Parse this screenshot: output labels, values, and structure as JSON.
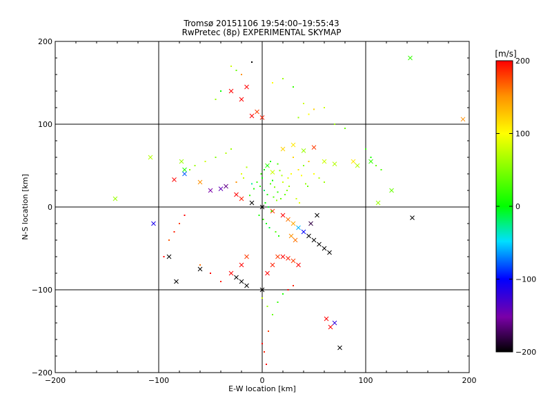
{
  "chart_data": {
    "type": "scatter",
    "title": "Tromsø 20151106 19:54:00–19:55:43",
    "subtitle": "RwPretec (8p) EXPERIMENTAL SKYMAP",
    "xlabel": "E-W location [km]",
    "ylabel": "N-S location [km]",
    "xlim": [
      -200,
      200
    ],
    "ylim": [
      -200,
      200
    ],
    "xticks": [
      -200,
      -100,
      0,
      100,
      200
    ],
    "yticks": [
      -200,
      -100,
      0,
      100,
      200
    ],
    "x_tick_labels": [
      "−200",
      "−100",
      "0",
      "100",
      "200"
    ],
    "y_tick_labels": [
      "−200",
      "−100",
      "0",
      "100",
      "200"
    ],
    "grid_lines": [
      -100,
      0,
      100
    ],
    "colorbar": {
      "label": "[m/s]",
      "range": [
        -200,
        200
      ],
      "ticks": [
        200,
        100,
        0,
        -100,
        -200
      ],
      "tick_labels": [
        "200",
        "100",
        "0",
        "−100",
        "−200"
      ],
      "colormap": "rainbow (black-purple-blue-cyan-green-yellow-red)"
    },
    "series": [
      {
        "marker": "x",
        "x": [
          -142,
          143,
          194,
          -108,
          -78,
          -75,
          -30,
          -20,
          -15,
          -10,
          -5,
          0,
          5,
          10,
          20,
          30,
          40,
          50,
          60,
          70,
          88,
          92,
          105,
          112,
          125,
          145,
          -85,
          -75,
          -60,
          -50,
          -40,
          -35,
          -25,
          -20,
          -10,
          0,
          10,
          20,
          25,
          30,
          35,
          40,
          45,
          50,
          55,
          60,
          65,
          20,
          25,
          30,
          35,
          28,
          32,
          -30,
          -25,
          -20,
          -15,
          0,
          5,
          10,
          15,
          -20,
          -15,
          70,
          66,
          62,
          75,
          -60,
          -90,
          -105,
          -83,
          53,
          47
        ],
        "y": [
          10,
          180,
          106,
          60,
          55,
          45,
          140,
          130,
          145,
          110,
          115,
          108,
          50,
          42,
          70,
          75,
          68,
          72,
          55,
          52,
          55,
          50,
          55,
          5,
          20,
          -13,
          33,
          40,
          30,
          20,
          22,
          25,
          15,
          10,
          5,
          0,
          -5,
          -10,
          -15,
          -20,
          -25,
          -30,
          -35,
          -40,
          -45,
          -50,
          -55,
          -60,
          -62,
          -65,
          -70,
          -35,
          -40,
          -80,
          -85,
          -90,
          -95,
          -100,
          -80,
          -70,
          -60,
          -70,
          -60,
          -140,
          -145,
          -135,
          -170,
          -75,
          -60,
          -20,
          -90,
          -10,
          -20
        ],
        "values": [
          60,
          20,
          150,
          70,
          60,
          10,
          200,
          200,
          200,
          200,
          180,
          190,
          30,
          80,
          120,
          110,
          60,
          180,
          80,
          70,
          110,
          70,
          20,
          60,
          40,
          -200,
          200,
          -80,
          150,
          -150,
          -140,
          -160,
          200,
          190,
          -200,
          -200,
          180,
          200,
          160,
          140,
          -60,
          -100,
          -200,
          -200,
          -200,
          -200,
          -200,
          200,
          190,
          180,
          200,
          150,
          160,
          200,
          -200,
          -200,
          -200,
          -200,
          200,
          190,
          180,
          200,
          180,
          -120,
          200,
          200,
          -200,
          -200,
          -200,
          -110,
          -200,
          -200,
          -180
        ]
      },
      {
        "marker": "dot",
        "x": [
          -5,
          -2,
          0,
          2,
          5,
          8,
          10,
          12,
          15,
          18,
          -8,
          -10,
          -12,
          3,
          6,
          9,
          11,
          14,
          20,
          25,
          28,
          35,
          38,
          40,
          42,
          44,
          -15,
          -18,
          -20,
          -25,
          30,
          45,
          50,
          55,
          60,
          -3,
          1,
          4,
          7,
          13,
          16,
          22,
          24,
          26,
          33,
          36,
          -1,
          2,
          5,
          8,
          15,
          17,
          19,
          -30,
          -35,
          -45,
          -55,
          -65,
          -70,
          -75,
          -80,
          -85,
          -90,
          -95,
          -60,
          -50,
          -40,
          60,
          70,
          80,
          100,
          105,
          110,
          115,
          0,
          5,
          10,
          15,
          20,
          25,
          30,
          -40,
          -45,
          0,
          2,
          4,
          6,
          -20,
          -25,
          -30,
          -10,
          10,
          20,
          30,
          40,
          50,
          45,
          35
        ],
        "y": [
          30,
          25,
          35,
          20,
          15,
          28,
          32,
          24,
          18,
          10,
          22,
          28,
          14,
          5,
          0,
          -5,
          12,
          8,
          30,
          35,
          40,
          45,
          38,
          50,
          28,
          25,
          48,
          35,
          40,
          30,
          60,
          55,
          40,
          35,
          30,
          -10,
          -15,
          -20,
          -25,
          -30,
          -35,
          15,
          20,
          25,
          10,
          5,
          40,
          45,
          50,
          55,
          52,
          44,
          38,
          70,
          65,
          60,
          55,
          50,
          45,
          -10,
          -20,
          -30,
          -40,
          -60,
          -70,
          -80,
          -90,
          120,
          100,
          95,
          70,
          60,
          50,
          45,
          -110,
          -120,
          -130,
          -115,
          -105,
          -100,
          -95,
          140,
          130,
          -165,
          -175,
          -190,
          -150,
          160,
          165,
          170,
          175,
          150,
          155,
          145,
          125,
          118,
          112,
          108
        ],
        "values": [
          20,
          10,
          0,
          -20,
          10,
          30,
          0,
          50,
          20,
          40,
          10,
          -30,
          20,
          0,
          -10,
          10,
          30,
          60,
          80,
          90,
          100,
          110,
          100,
          50,
          60,
          40,
          70,
          80,
          90,
          150,
          120,
          130,
          100,
          70,
          60,
          10,
          20,
          0,
          -10,
          30,
          10,
          40,
          50,
          60,
          80,
          90,
          20,
          0,
          -10,
          10,
          30,
          50,
          70,
          60,
          70,
          50,
          80,
          60,
          50,
          200,
          180,
          190,
          170,
          200,
          160,
          200,
          190,
          80,
          60,
          40,
          20,
          10,
          40,
          30,
          80,
          60,
          40,
          20,
          10,
          200,
          190,
          0,
          60,
          200,
          190,
          200,
          180,
          150,
          40,
          80,
          -200,
          100,
          60,
          20,
          80,
          120,
          100,
          60
        ]
      }
    ]
  }
}
